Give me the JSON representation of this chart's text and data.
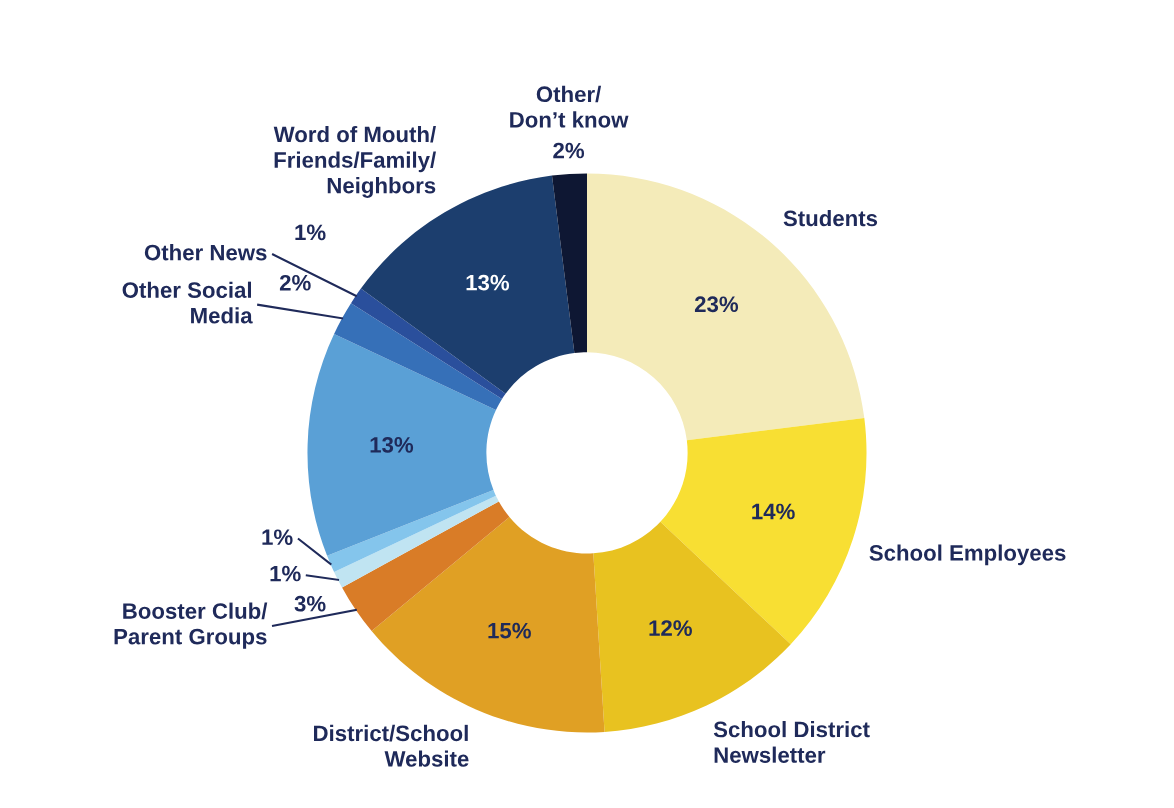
{
  "chart_data": {
    "type": "donut",
    "categories": [
      "Students",
      "School Employees",
      "School District\nNewsletter",
      "District/School\nWebsite",
      "Booster Club/\nParent Groups",
      null,
      null,
      null,
      "Other Social\nMedia",
      "Other News",
      "Word of Mouth/\nFriends/Family/\nNeighbors",
      "Other/\nDon’t know"
    ],
    "values": [
      23,
      14,
      12,
      15,
      3,
      1,
      1,
      13,
      2,
      1,
      13,
      2
    ],
    "colors": [
      "#f4ebb9",
      "#f8df33",
      "#e8c220",
      "#e0a024",
      "#d97c27",
      "#c0e4f2",
      "#84c5ec",
      "#5aa0d6",
      "#3670b8",
      "#2a4f9c",
      "#1c3e6e",
      "#0e1733"
    ],
    "value_labels": [
      "23%",
      "14%",
      "12%",
      "15%",
      "3%",
      "1%",
      "1%",
      "13%",
      "2%",
      "1%",
      "13%",
      "2%"
    ]
  }
}
